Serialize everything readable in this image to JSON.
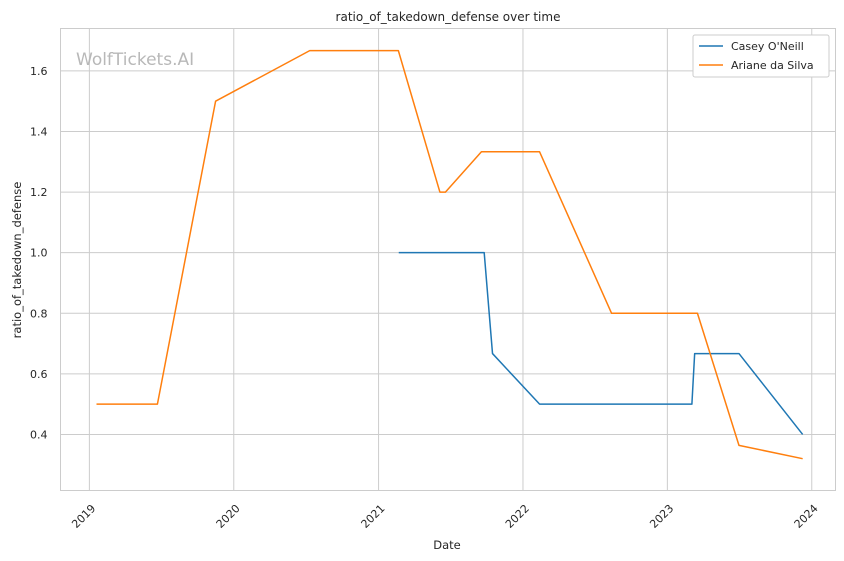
{
  "chart_data": {
    "type": "line",
    "title": "ratio_of_takedown_defense over time",
    "xlabel": "Date",
    "ylabel": "ratio_of_takedown_defense",
    "watermark": "WolfTickets.AI",
    "x_ticks": [
      "2019",
      "2020",
      "2021",
      "2022",
      "2023",
      "2024"
    ],
    "y_ticks": [
      "0.4",
      "0.6",
      "0.8",
      "1.0",
      "1.2",
      "1.4",
      "1.6"
    ],
    "xlim": [
      "2018-10-20",
      "2024-03-01"
    ],
    "ylim": [
      0.215,
      1.74
    ],
    "grid": true,
    "legend_position": "top-right",
    "series": [
      {
        "name": "Casey O'Neill",
        "color": "#1f77b4",
        "points": [
          [
            "2021-02-21",
            1.0
          ],
          [
            "2021-09-25",
            1.0
          ],
          [
            "2021-10-16",
            0.667
          ],
          [
            "2022-02-12",
            0.5
          ],
          [
            "2023-03-04",
            0.5
          ],
          [
            "2023-03-11",
            0.667
          ],
          [
            "2023-07-01",
            0.667
          ],
          [
            "2023-12-09",
            0.4
          ]
        ]
      },
      {
        "name": "Ariane da Silva",
        "color": "#ff7f0e",
        "points": [
          [
            "2019-01-19",
            0.5
          ],
          [
            "2019-06-22",
            0.5
          ],
          [
            "2019-11-16",
            1.5
          ],
          [
            "2020-07-11",
            1.667
          ],
          [
            "2021-02-20",
            1.667
          ],
          [
            "2021-06-05",
            1.2
          ],
          [
            "2021-06-19",
            1.2
          ],
          [
            "2021-09-18",
            1.333
          ],
          [
            "2022-02-12",
            1.333
          ],
          [
            "2022-08-13",
            0.8
          ],
          [
            "2023-03-18",
            0.8
          ],
          [
            "2023-07-01",
            0.364
          ],
          [
            "2023-12-09",
            0.32
          ]
        ]
      }
    ]
  }
}
